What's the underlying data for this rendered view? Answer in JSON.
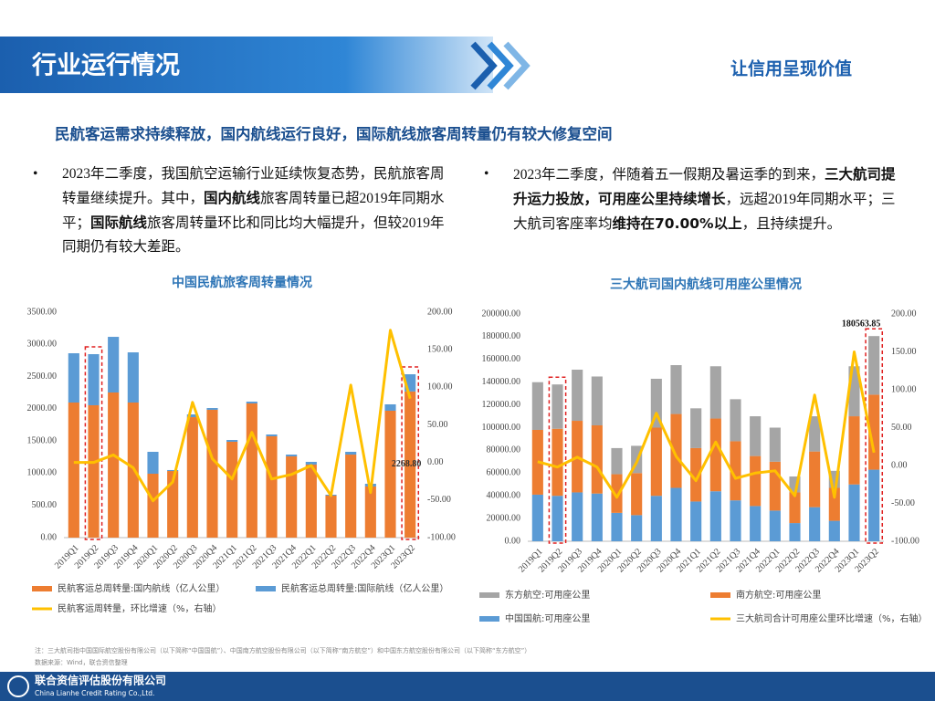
{
  "header": {
    "title": "行业运行情况",
    "slogan": "让信用呈现价值"
  },
  "subtitle": "民航客运需求持续释放，国内航线运行良好，国际航线旅客周转量仍有较大修复空间",
  "bullets": [
    [
      {
        "text": "2023年二季度，我国航空运输行业延续恢复态势，民航旅客周转量继续提升。其中，",
        "bold": false
      },
      {
        "text": "国内航线",
        "bold": true
      },
      {
        "text": "旅客周转量已超2019年同期水平；",
        "bold": false
      },
      {
        "text": "国际航线",
        "bold": true
      },
      {
        "text": "旅客周转量环比和同比均大幅提升，但较2019年同期仍有较大差距。",
        "bold": false
      }
    ],
    [
      {
        "text": "2023年二季度，伴随着五一假期及暑运季的到来，",
        "bold": false
      },
      {
        "text": "三大航司提升运力投放，可用座公里持续增长",
        "bold": true
      },
      {
        "text": "，远超2019年同期水平；三大航司客座率均",
        "bold": false
      },
      {
        "text": "维持在70.00%以上",
        "bold": true
      },
      {
        "text": "，且持续提升。",
        "bold": false
      }
    ]
  ],
  "chart_data": [
    {
      "type": "bar",
      "stacked": true,
      "title": "中国民航旅客周转量情况",
      "categories": [
        "2019Q1",
        "2019Q2",
        "2019Q3",
        "2019Q4",
        "2020Q1",
        "2020Q2",
        "2020Q3",
        "2020Q4",
        "2021Q1",
        "2021Q2",
        "2021Q3",
        "2021Q4",
        "2022Q1",
        "2022Q2",
        "2022Q3",
        "2022Q4",
        "2023Q1",
        "2023Q2"
      ],
      "series": [
        {
          "name": "民航客运总周转量:国内航线（亿人公里）",
          "type": "bar",
          "color": "#ED7D31",
          "values": [
            2097,
            2055,
            2253,
            2097,
            992,
            1034,
            1870,
            1984,
            1488,
            2083,
            1573,
            1261,
            1134,
            652,
            1289,
            794,
            1970,
            2268.8
          ]
        },
        {
          "name": "民航客运总周转量:国际航线（亿人公里）",
          "type": "bar",
          "color": "#5B9BD5",
          "values": [
            765,
            793,
            864,
            779,
            340,
            15,
            43,
            28,
            28,
            28,
            28,
            28,
            42,
            14,
            43,
            42,
            99,
            267
          ]
        },
        {
          "name": "民航客运周转量，环比增速（%，右轴）",
          "type": "line",
          "axis": "y2",
          "color": "#FFC000",
          "values": [
            0,
            0,
            10,
            -7,
            -51,
            -26,
            80,
            5,
            -22,
            40,
            -22,
            -16,
            -4,
            -44,
            103,
            -40,
            176,
            85
          ]
        }
      ],
      "annotation": {
        "value": 2268.8,
        "label": "2268.80"
      },
      "ylim": [
        0,
        3500
      ],
      "yticks": [
        {
          "value": 0,
          "label": "0.00"
        },
        {
          "value": 500,
          "label": "500.00"
        },
        {
          "value": 1000,
          "label": "1000.00"
        },
        {
          "value": 1500,
          "label": "1500.00"
        },
        {
          "value": 2000,
          "label": "2000.00"
        },
        {
          "value": 2500,
          "label": "2500.00"
        },
        {
          "value": 3000,
          "label": "3000.00"
        },
        {
          "value": 3500,
          "label": "3500.00"
        }
      ],
      "y2lim": [
        -100,
        200
      ],
      "y2ticks": [
        {
          "value": -100,
          "label": "-100.00"
        },
        {
          "value": -50,
          "label": "-50.00"
        },
        {
          "value": 0,
          "label": "0.00"
        },
        {
          "value": 50,
          "label": "50.00"
        },
        {
          "value": 100,
          "label": "100.00"
        },
        {
          "value": 150,
          "label": "150.00"
        },
        {
          "value": 200,
          "label": "200.00"
        }
      ]
    },
    {
      "type": "bar",
      "stacked": true,
      "title": "三大航司国内航线可用座公里情况",
      "categories": [
        "2019Q1",
        "2019Q2",
        "2019Q3",
        "2019Q4",
        "2020Q1",
        "2020Q2",
        "2020Q3",
        "2020Q4",
        "2021Q1",
        "2021Q2",
        "2021Q3",
        "2021Q4",
        "2022Q1",
        "2022Q2",
        "2022Q3",
        "2022Q4",
        "2023Q1",
        "2023Q2"
      ],
      "series": [
        {
          "name": "东方航空:可用座公里",
          "type": "bar",
          "color": "#A5A5A5",
          "values": [
            42000,
            39000,
            45000,
            43000,
            23000,
            24000,
            43000,
            43000,
            35000,
            46000,
            37000,
            35000,
            30000,
            14000,
            31000,
            15000,
            44000,
            51564
          ]
        },
        {
          "name": "南方航空:可用座公里",
          "type": "bar",
          "color": "#ED7D31",
          "values": [
            57000,
            59000,
            63000,
            60000,
            34000,
            37000,
            60000,
            65000,
            47000,
            64000,
            52000,
            44000,
            43000,
            27000,
            49000,
            29000,
            60000,
            66000
          ]
        },
        {
          "name": "中国国航:可用座公里",
          "type": "bar",
          "color": "#5B9BD5",
          "values": [
            41000,
            40000,
            43000,
            42000,
            25000,
            23000,
            40000,
            47000,
            35000,
            44000,
            36000,
            31000,
            27000,
            16000,
            30000,
            18000,
            50000,
            63000
          ]
        },
        {
          "name": "三大航司合计可用座公里环比增速（%，右轴）",
          "type": "line",
          "axis": "y2",
          "color": "#FFC000",
          "values": [
            5,
            -2,
            11,
            -2,
            -42,
            4,
            69,
            12,
            -20,
            31,
            -17,
            -10,
            -7,
            -40,
            93,
            -42,
            150,
            17
          ]
        }
      ],
      "annotation": 180563.85,
      "ylim": [
        0,
        200000
      ],
      "yticks": [
        {
          "value": 0,
          "label": "0.00"
        },
        {
          "value": 20000,
          "label": "20000.00"
        },
        {
          "value": 40000,
          "label": "40000.00"
        },
        {
          "value": 60000,
          "label": "60000.00"
        },
        {
          "value": 80000,
          "label": "80000.00"
        },
        {
          "value": 100000,
          "label": "100000.00"
        },
        {
          "value": 120000,
          "label": "120000.00"
        },
        {
          "value": 140000,
          "label": "140000.00"
        },
        {
          "value": 160000,
          "label": "160000.00"
        },
        {
          "value": 180000,
          "label": "180000.00"
        },
        {
          "value": 200000,
          "label": "200000.00"
        }
      ],
      "y2lim": [
        -100,
        200
      ],
      "y2ticks": [
        {
          "value": -100,
          "label": "-100.00"
        },
        {
          "value": -50,
          "label": "-50.00"
        },
        {
          "value": 0,
          "label": "0.00"
        },
        {
          "value": 50,
          "label": "50.00"
        },
        {
          "value": 100,
          "label": "100.00"
        },
        {
          "value": 150,
          "label": "150.00"
        },
        {
          "value": 200,
          "label": "200.00"
        }
      ]
    }
  ],
  "notes": [
    "注：三大航司指中国国际航空股份有限公司（以下简称“中国国航”）、中国南方航空股份有限公司（以下简称“南方航空”）和中国东方航空股份有限公司（以下简称“东方航空”）",
    "数据来源：Wind，联合资信整理"
  ],
  "footer": {
    "company": "联合资信评估股份有限公司",
    "company_en": "China Lianhe Credit Rating Co.,Ltd."
  }
}
